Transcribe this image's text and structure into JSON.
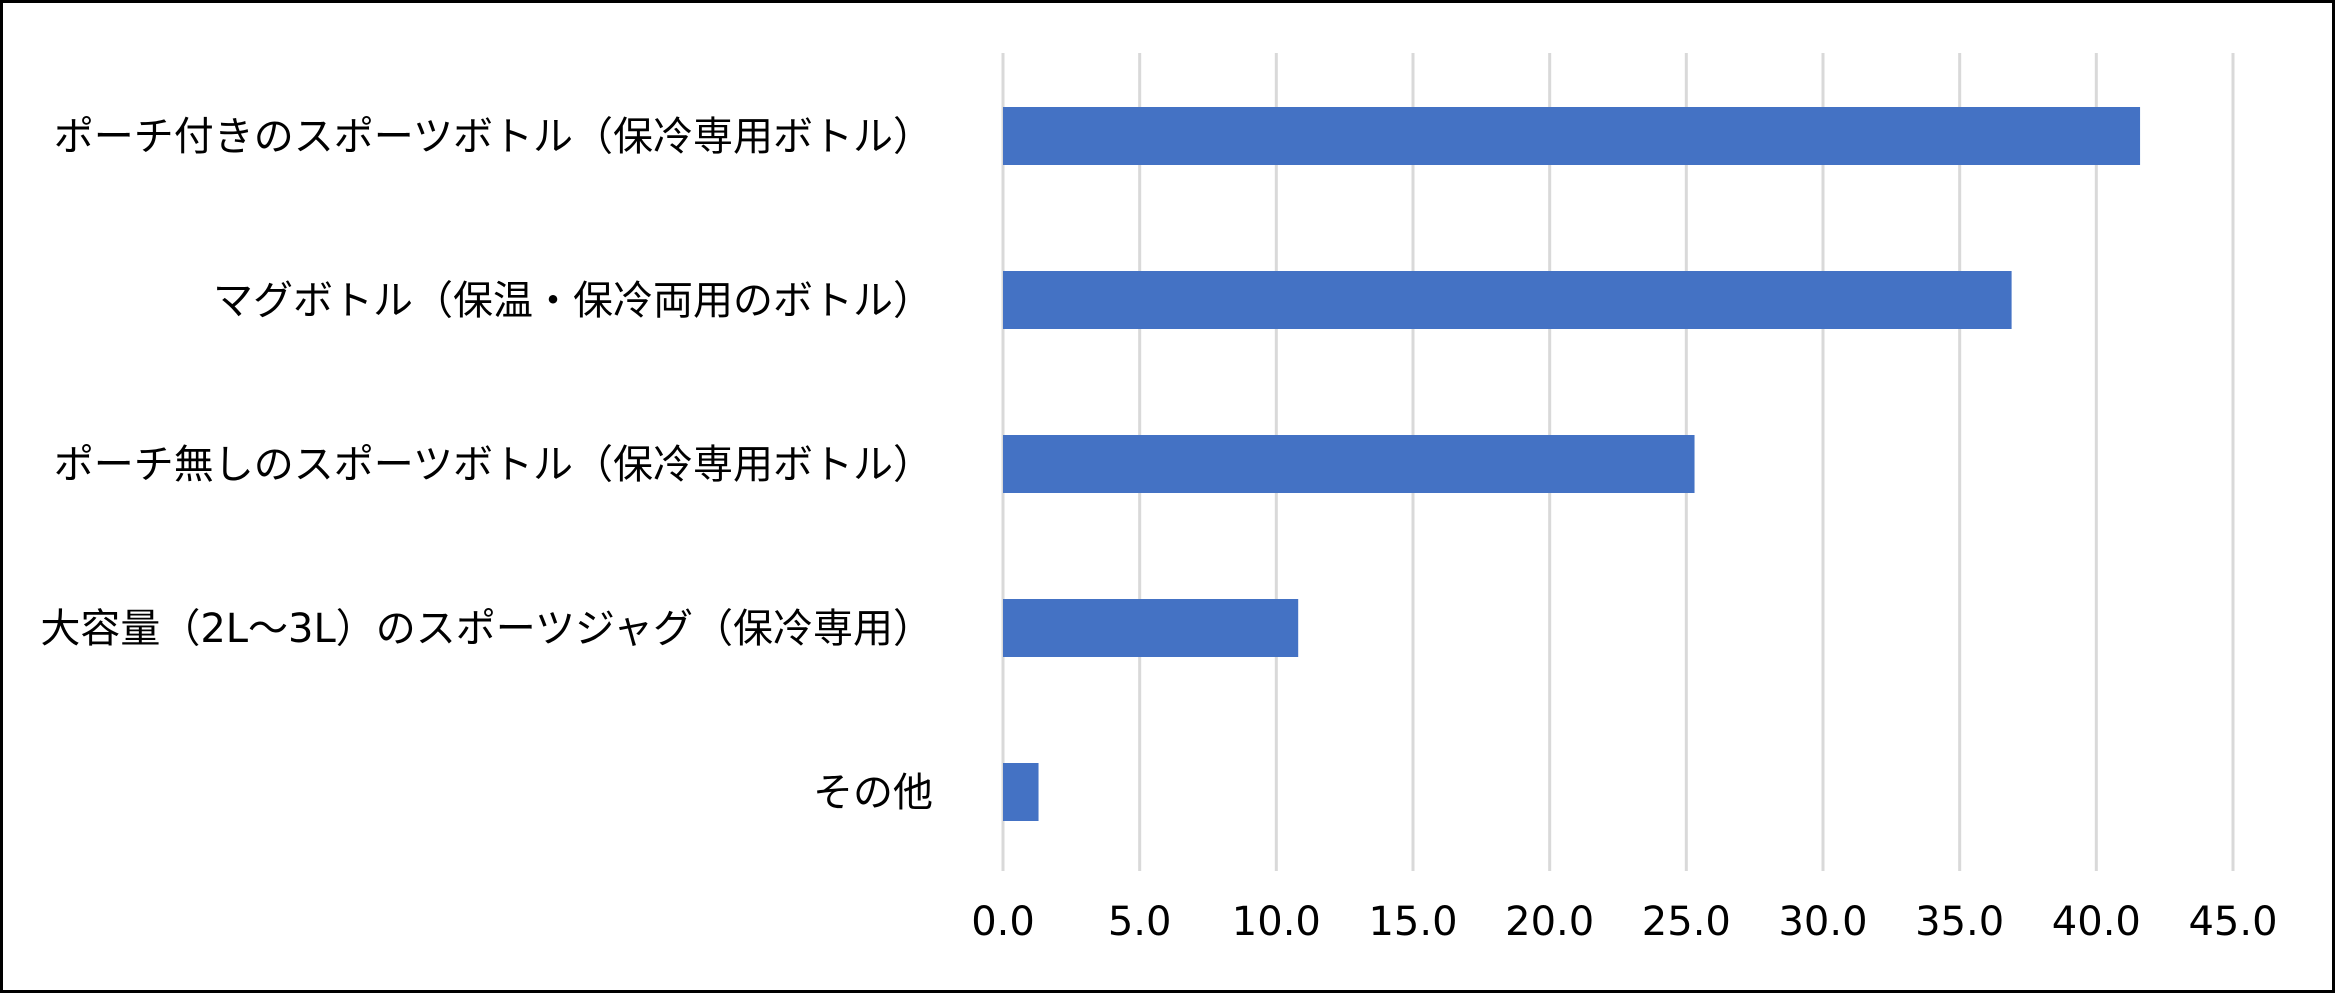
{
  "chart_data": {
    "type": "bar",
    "orientation": "horizontal",
    "categories": [
      "ポーチ付きのスポーツボトル（保冷専用ボトル）",
      "マグボトル（保温・保冷両用のボトル）",
      "ポーチ無しのスポーツボトル（保冷専用ボトル）",
      "大容量（2L～3L）のスポーツジャグ（保冷専用）",
      "その他"
    ],
    "values": [
      41.6,
      36.9,
      25.3,
      10.8,
      1.3
    ],
    "bar_color": "#4472c4",
    "xlim": [
      0,
      45
    ],
    "xticks": [
      "0.0",
      "5.0",
      "10.0",
      "15.0",
      "20.0",
      "25.0",
      "30.0",
      "35.0",
      "40.0",
      "45.0"
    ],
    "grid": true,
    "legend": "none"
  }
}
